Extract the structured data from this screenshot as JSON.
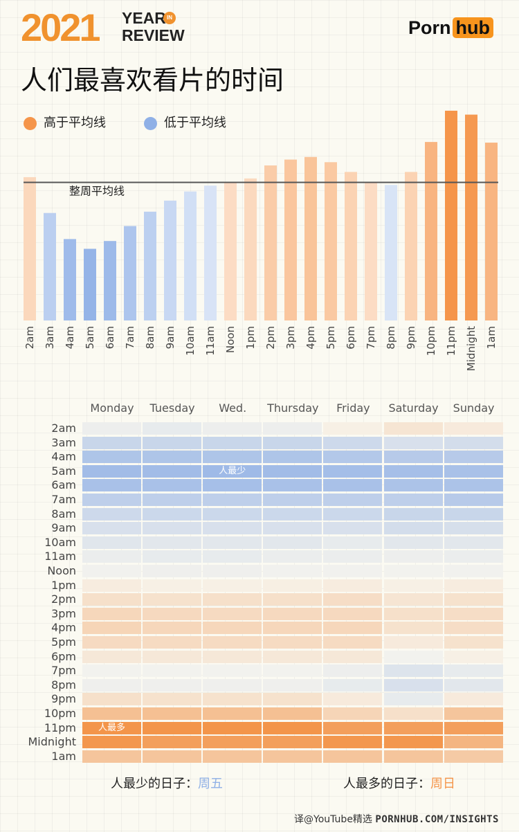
{
  "header": {
    "year": "2021",
    "year_in_review_line1": "YEAR",
    "year_in_review_line2": "REVIEW",
    "in_badge": "IN",
    "logo_left": "Porn",
    "logo_right": "hub"
  },
  "main_title": "人们最喜欢看片的时间",
  "legend": {
    "above": "高于平均线",
    "below": "低于平均线",
    "above_color": "#f5954a",
    "below_color": "#8fb0e6"
  },
  "average_label": "整周平均线",
  "chart_data": [
    {
      "type": "bar",
      "title": "人们最喜欢看片的时间",
      "categories": [
        "2am",
        "3am",
        "4am",
        "5am",
        "6am",
        "7am",
        "8am",
        "9am",
        "10am",
        "11am",
        "Noon",
        "1pm",
        "2pm",
        "3pm",
        "4pm",
        "5pm",
        "6pm",
        "7pm",
        "8pm",
        "9pm",
        "10pm",
        "11pm",
        "Midnight",
        "1am"
      ],
      "values": [
        220,
        165,
        125,
        110,
        122,
        145,
        167,
        184,
        198,
        207,
        213,
        218,
        238,
        247,
        251,
        243,
        228,
        213,
        208,
        228,
        274,
        322,
        316,
        273
      ],
      "average": 212,
      "ylim": [
        0,
        340
      ],
      "series": [
        {
          "values_above_avg_color": "#f5954a",
          "values_below_avg_color": "#8fb0e6"
        }
      ],
      "legend": [
        "高于平均线",
        "低于平均线"
      ],
      "grid": false
    },
    {
      "type": "heatmap",
      "columns": [
        "Monday",
        "Tuesday",
        "Wed.",
        "Thursday",
        "Friday",
        "Saturday",
        "Sunday"
      ],
      "rows": [
        "2am",
        "3am",
        "4am",
        "5am",
        "6am",
        "7am",
        "8am",
        "9am",
        "10am",
        "11am",
        "Noon",
        "1pm",
        "2pm",
        "3pm",
        "4pm",
        "5pm",
        "6pm",
        "7pm",
        "8pm",
        "9pm",
        "10pm",
        "11pm",
        "Midnight",
        "1am"
      ],
      "values": [
        [
          -0.1,
          -0.15,
          -0.1,
          -0.1,
          0.05,
          0.15,
          0.1
        ],
        [
          -0.45,
          -0.45,
          -0.45,
          -0.45,
          -0.4,
          -0.3,
          -0.35
        ],
        [
          -0.7,
          -0.7,
          -0.7,
          -0.7,
          -0.65,
          -0.62,
          -0.62
        ],
        [
          -0.82,
          -0.82,
          -0.85,
          -0.82,
          -0.8,
          -0.78,
          -0.75
        ],
        [
          -0.75,
          -0.75,
          -0.78,
          -0.75,
          -0.75,
          -0.72,
          -0.72
        ],
        [
          -0.55,
          -0.55,
          -0.55,
          -0.55,
          -0.55,
          -0.55,
          -0.62
        ],
        [
          -0.4,
          -0.42,
          -0.42,
          -0.42,
          -0.42,
          -0.45,
          -0.45
        ],
        [
          -0.3,
          -0.3,
          -0.3,
          -0.3,
          -0.3,
          -0.35,
          -0.32
        ],
        [
          -0.22,
          -0.2,
          -0.2,
          -0.2,
          -0.15,
          -0.2,
          -0.2
        ],
        [
          -0.12,
          -0.15,
          -0.15,
          -0.12,
          -0.12,
          -0.1,
          -0.12
        ],
        [
          -0.06,
          -0.08,
          -0.08,
          -0.06,
          -0.06,
          -0.05,
          -0.06
        ],
        [
          0.08,
          0.05,
          0.05,
          0.06,
          0.08,
          0.05,
          0.08
        ],
        [
          0.2,
          0.18,
          0.2,
          0.2,
          0.22,
          0.15,
          0.18
        ],
        [
          0.28,
          0.26,
          0.25,
          0.26,
          0.26,
          0.2,
          0.22
        ],
        [
          0.3,
          0.28,
          0.28,
          0.28,
          0.28,
          0.18,
          0.22
        ],
        [
          0.25,
          0.24,
          0.24,
          0.24,
          0.24,
          0.1,
          0.18
        ],
        [
          0.12,
          0.12,
          0.12,
          0.12,
          0.12,
          -0.05,
          0.05
        ],
        [
          -0.05,
          -0.05,
          -0.05,
          -0.05,
          -0.1,
          -0.25,
          -0.15
        ],
        [
          -0.08,
          -0.08,
          -0.08,
          -0.08,
          -0.15,
          -0.3,
          -0.2
        ],
        [
          0.2,
          0.18,
          0.18,
          0.18,
          0.1,
          -0.15,
          0.1
        ],
        [
          0.5,
          0.5,
          0.5,
          0.5,
          0.3,
          0.2,
          0.45
        ],
        [
          0.9,
          0.9,
          0.9,
          0.9,
          0.8,
          0.8,
          0.8
        ],
        [
          0.88,
          0.8,
          0.8,
          0.8,
          0.88,
          0.88,
          0.6
        ],
        [
          0.45,
          0.45,
          0.45,
          0.45,
          0.45,
          0.45,
          0.4
        ]
      ],
      "color_scale": {
        "low": "#8fb0e6",
        "mid": "#f7f5ee",
        "high": "#f28a38"
      },
      "annotations": [
        {
          "text": "人最少",
          "row": "5am",
          "column": "Wed."
        },
        {
          "text": "人最多",
          "row": "11pm",
          "column": "Monday"
        }
      ]
    }
  ],
  "summary": {
    "least_label": "人最少的日子：",
    "least_day": "周五",
    "least_color": "#8fb0e6",
    "most_label": "人最多的日子：",
    "most_day": "周日",
    "most_color": "#f5954a"
  },
  "credit": {
    "translator": "译@YouTube精选",
    "site": "PORNHUB.COM/INSIGHTS"
  }
}
